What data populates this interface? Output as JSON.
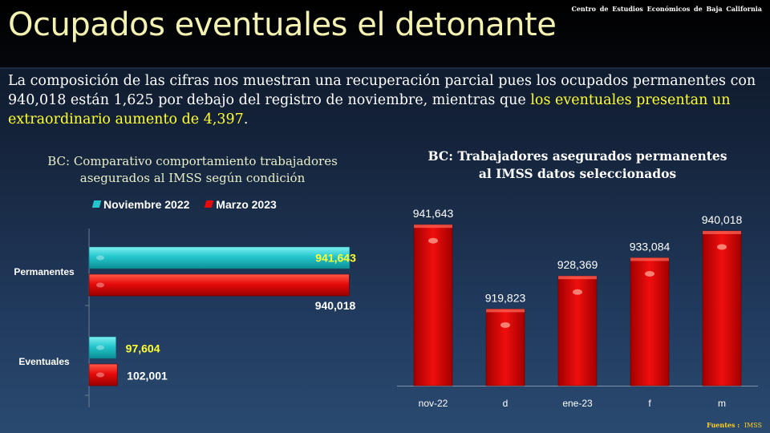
{
  "header": {
    "title": "Ocupados eventuales el detonante",
    "center_name": "Centro de Estudios  Económicos  de Baja California"
  },
  "intro": {
    "text_a": "La composición de las cifras nos muestran una recuperación parcial pues los ocupados permanentes con 940,018 están 1,625 por debajo del registro de noviembre, mientras que ",
    "text_b": "los eventuales presentan un extraordinario aumento de  4,397",
    "text_c": "."
  },
  "colors": {
    "cyan": "#22c6cc",
    "red": "#e60a0a",
    "value_yellow": "#ffff33"
  },
  "chart_data": [
    {
      "type": "bar",
      "orientation": "horizontal",
      "title_line1": "BC: Comparativo comportamiento trabajadores",
      "title_line2": "asegurados al IMSS según condición",
      "categories": [
        "Permanentes",
        "Eventuales"
      ],
      "series": [
        {
          "name": "Noviembre 2022",
          "values": [
            941643,
            97604
          ],
          "labels": [
            "941,643",
            "97,604"
          ]
        },
        {
          "name": "Marzo 2023",
          "values": [
            940018,
            102001
          ],
          "labels": [
            "940,018",
            "102,001"
          ]
        }
      ],
      "xlim": [
        0,
        1000000
      ],
      "legend": "top"
    },
    {
      "type": "bar",
      "orientation": "vertical",
      "title_line1": "BC: Trabajadores asegurados permanentes",
      "title_line2": "al IMSS datos seleccionados",
      "categories": [
        "nov-22",
        "d",
        "ene-23",
        "f",
        "m"
      ],
      "values": [
        941643,
        919823,
        928369,
        933084,
        940018
      ],
      "labels": [
        "941,643",
        "919,823",
        "928,369",
        "933,084",
        "940,018"
      ],
      "ylim": [
        900000,
        945000
      ]
    }
  ],
  "footer": {
    "label": "Fuentes :",
    "source": "IMSS"
  }
}
